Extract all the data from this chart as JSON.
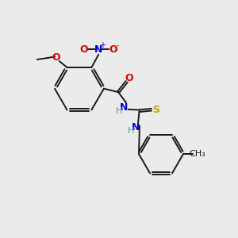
{
  "bg_color": "#ebebeb",
  "bond_color": "#1a1a1a",
  "N_color": "#0000dd",
  "O_color": "#dd0000",
  "S_color": "#bbaa00",
  "NH_color": "#4d9999",
  "figsize": [
    3.0,
    3.0
  ],
  "dpi": 100,
  "xlim": [
    0,
    10
  ],
  "ylim": [
    0,
    10
  ]
}
